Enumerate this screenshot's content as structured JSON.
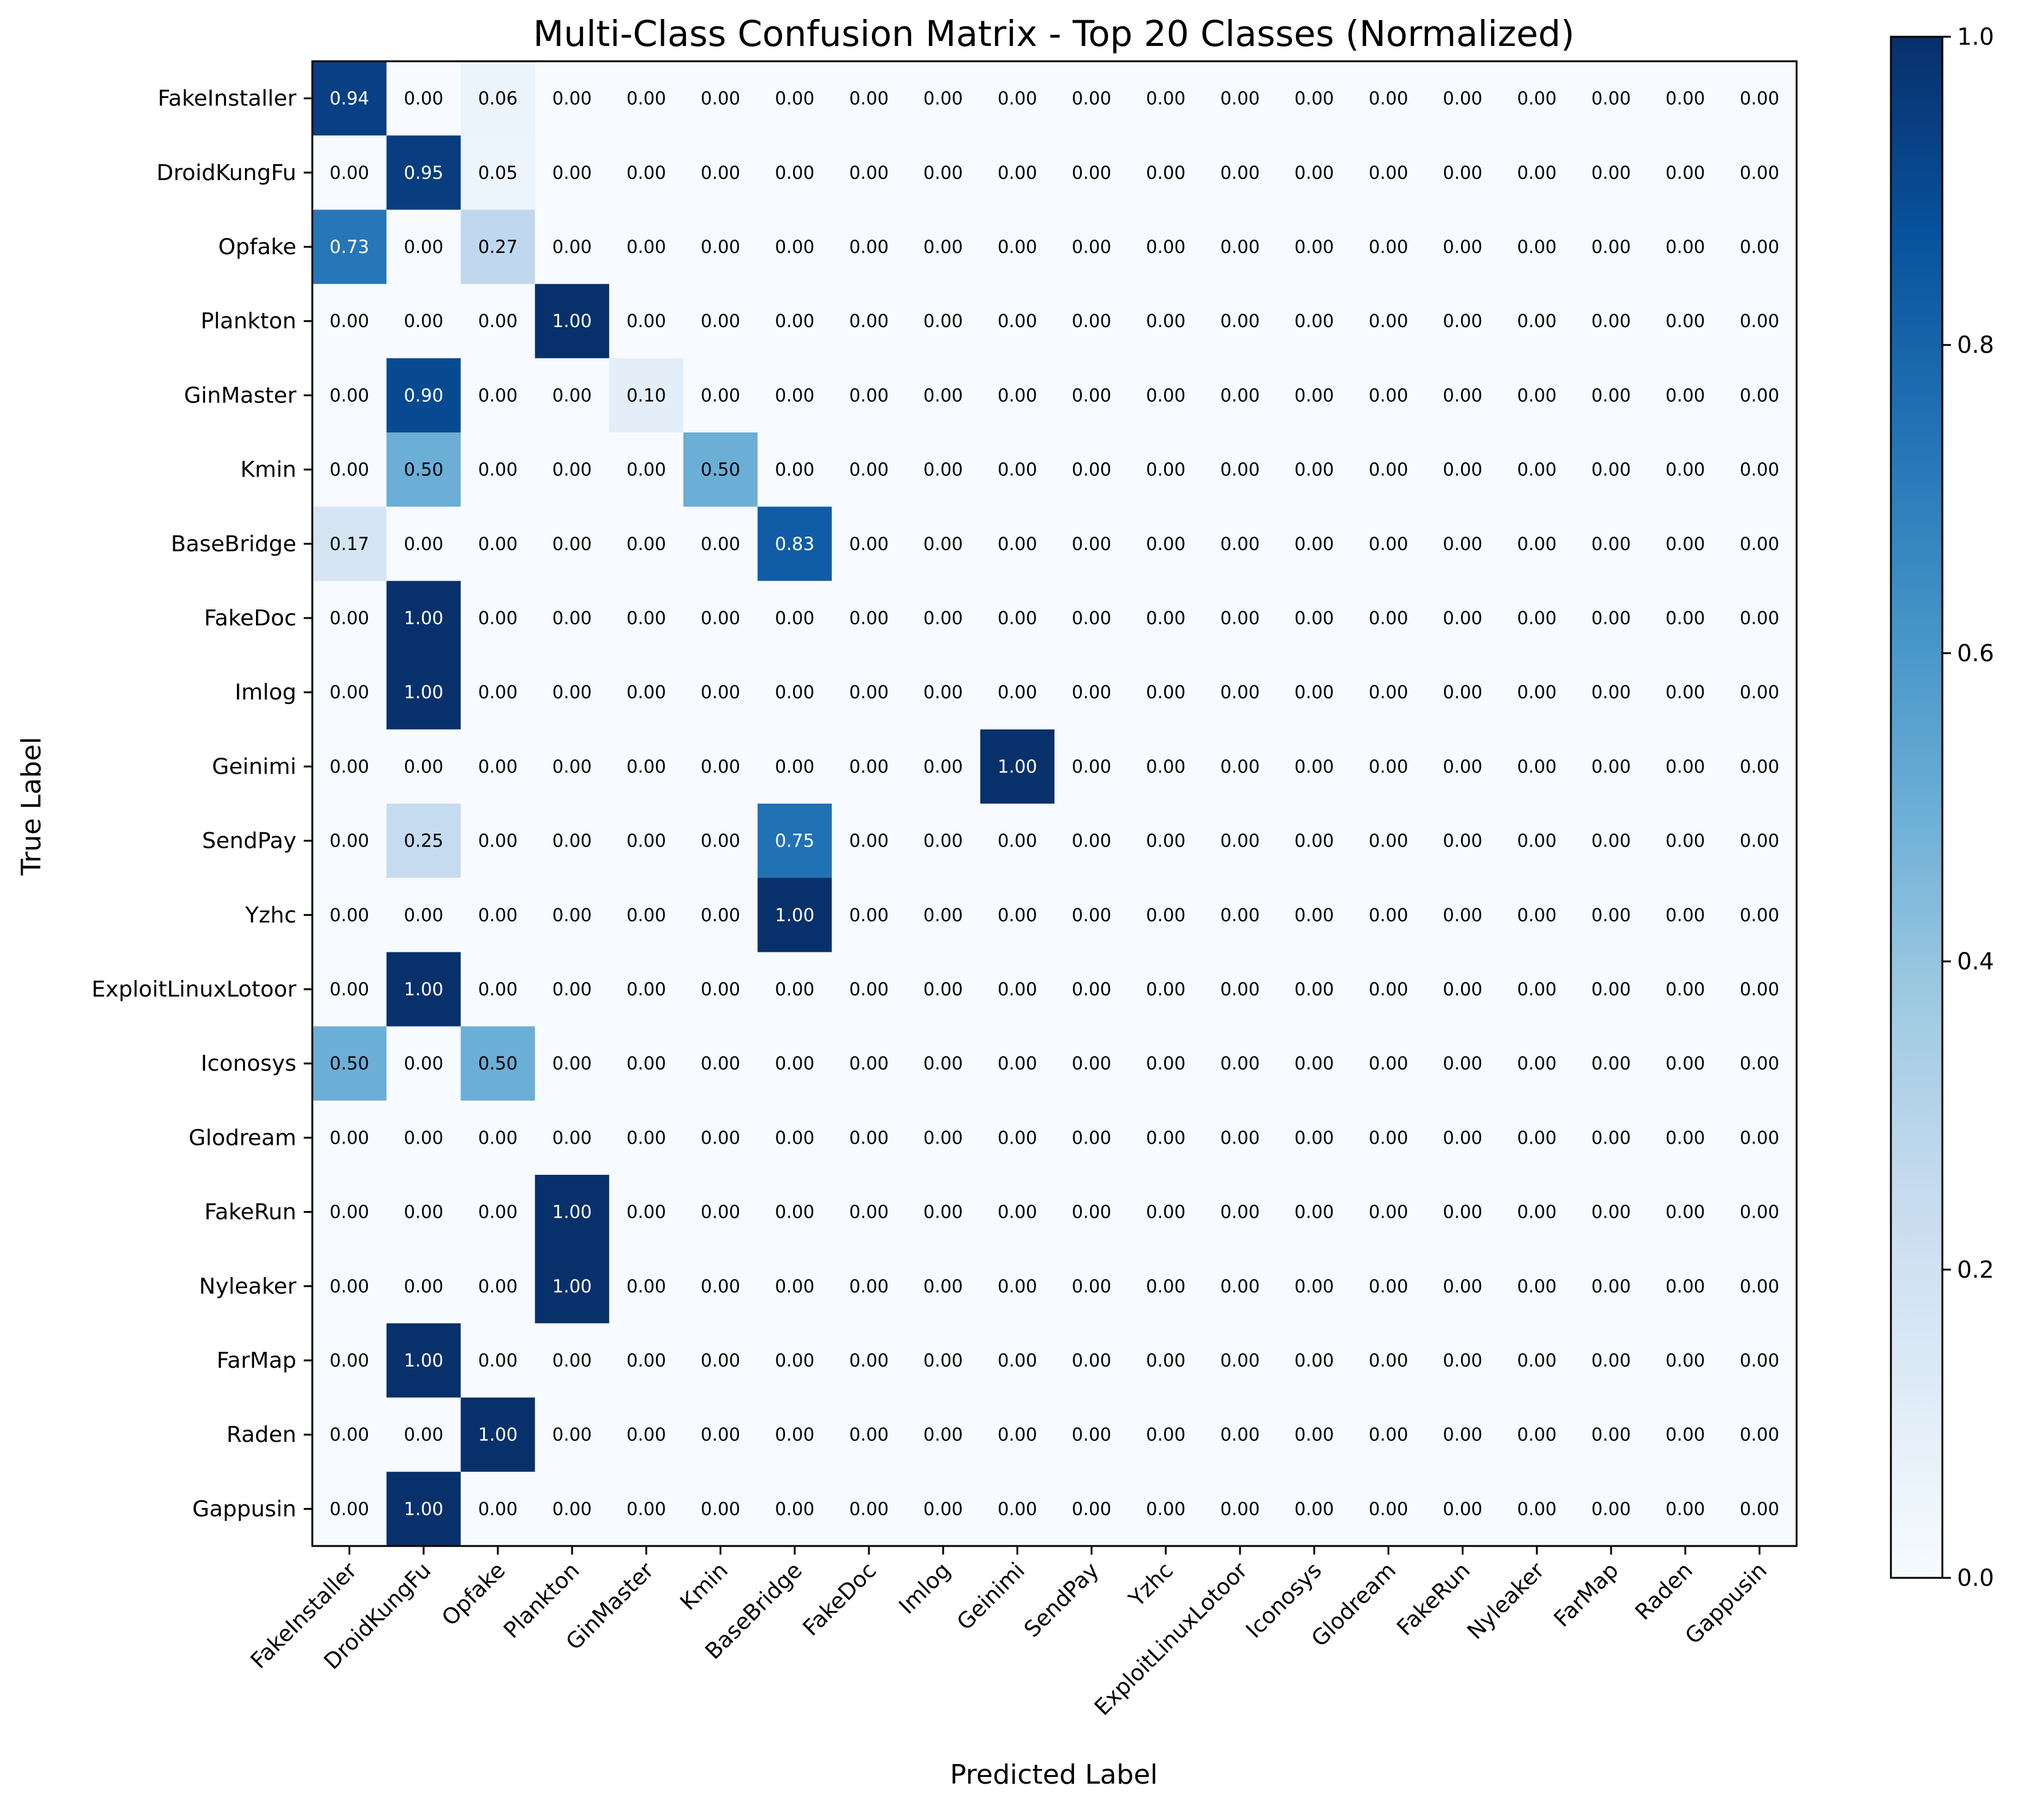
{
  "chart_data": {
    "type": "heatmap",
    "title": "Multi-Class Confusion Matrix - Top 20 Classes (Normalized)",
    "xlabel": "Predicted Label",
    "ylabel": "True Label",
    "classes": [
      "FakeInstaller",
      "DroidKungFu",
      "Opfake",
      "Plankton",
      "GinMaster",
      "Kmin",
      "BaseBridge",
      "FakeDoc",
      "Imlog",
      "Geinimi",
      "SendPay",
      "Yzhc",
      "ExploitLinuxLotoor",
      "Iconosys",
      "Glodream",
      "FakeRun",
      "Nyleaker",
      "FarMap",
      "Raden",
      "Gappusin"
    ],
    "matrix": [
      [
        0.94,
        0,
        0.06,
        0,
        0,
        0,
        0,
        0,
        0,
        0,
        0,
        0,
        0,
        0,
        0,
        0,
        0,
        0,
        0,
        0
      ],
      [
        0,
        0.95,
        0.05,
        0,
        0,
        0,
        0,
        0,
        0,
        0,
        0,
        0,
        0,
        0,
        0,
        0,
        0,
        0,
        0,
        0
      ],
      [
        0.73,
        0,
        0.27,
        0,
        0,
        0,
        0,
        0,
        0,
        0,
        0,
        0,
        0,
        0,
        0,
        0,
        0,
        0,
        0,
        0
      ],
      [
        0,
        0,
        0,
        1,
        0,
        0,
        0,
        0,
        0,
        0,
        0,
        0,
        0,
        0,
        0,
        0,
        0,
        0,
        0,
        0
      ],
      [
        0,
        0.9,
        0,
        0,
        0.1,
        0,
        0,
        0,
        0,
        0,
        0,
        0,
        0,
        0,
        0,
        0,
        0,
        0,
        0,
        0
      ],
      [
        0,
        0.5,
        0,
        0,
        0,
        0.5,
        0,
        0,
        0,
        0,
        0,
        0,
        0,
        0,
        0,
        0,
        0,
        0,
        0,
        0
      ],
      [
        0.17,
        0,
        0,
        0,
        0,
        0,
        0.83,
        0,
        0,
        0,
        0,
        0,
        0,
        0,
        0,
        0,
        0,
        0,
        0,
        0
      ],
      [
        0,
        1,
        0,
        0,
        0,
        0,
        0,
        0,
        0,
        0,
        0,
        0,
        0,
        0,
        0,
        0,
        0,
        0,
        0,
        0
      ],
      [
        0,
        1,
        0,
        0,
        0,
        0,
        0,
        0,
        0,
        0,
        0,
        0,
        0,
        0,
        0,
        0,
        0,
        0,
        0,
        0
      ],
      [
        0,
        0,
        0,
        0,
        0,
        0,
        0,
        0,
        0,
        1,
        0,
        0,
        0,
        0,
        0,
        0,
        0,
        0,
        0,
        0
      ],
      [
        0,
        0.25,
        0,
        0,
        0,
        0,
        0.75,
        0,
        0,
        0,
        0,
        0,
        0,
        0,
        0,
        0,
        0,
        0,
        0,
        0
      ],
      [
        0,
        0,
        0,
        0,
        0,
        0,
        1,
        0,
        0,
        0,
        0,
        0,
        0,
        0,
        0,
        0,
        0,
        0,
        0,
        0
      ],
      [
        0,
        1,
        0,
        0,
        0,
        0,
        0,
        0,
        0,
        0,
        0,
        0,
        0,
        0,
        0,
        0,
        0,
        0,
        0,
        0
      ],
      [
        0.5,
        0,
        0.5,
        0,
        0,
        0,
        0,
        0,
        0,
        0,
        0,
        0,
        0,
        0,
        0,
        0,
        0,
        0,
        0,
        0
      ],
      [
        0,
        0,
        0,
        0,
        0,
        0,
        0,
        0,
        0,
        0,
        0,
        0,
        0,
        0,
        0,
        0,
        0,
        0,
        0,
        0
      ],
      [
        0,
        0,
        0,
        1,
        0,
        0,
        0,
        0,
        0,
        0,
        0,
        0,
        0,
        0,
        0,
        0,
        0,
        0,
        0,
        0
      ],
      [
        0,
        0,
        0,
        1,
        0,
        0,
        0,
        0,
        0,
        0,
        0,
        0,
        0,
        0,
        0,
        0,
        0,
        0,
        0,
        0
      ],
      [
        0,
        1,
        0,
        0,
        0,
        0,
        0,
        0,
        0,
        0,
        0,
        0,
        0,
        0,
        0,
        0,
        0,
        0,
        0,
        0
      ],
      [
        0,
        0,
        1,
        0,
        0,
        0,
        0,
        0,
        0,
        0,
        0,
        0,
        0,
        0,
        0,
        0,
        0,
        0,
        0,
        0
      ],
      [
        0,
        1,
        0,
        0,
        0,
        0,
        0,
        0,
        0,
        0,
        0,
        0,
        0,
        0,
        0,
        0,
        0,
        0,
        0,
        0
      ]
    ],
    "value_format": "2 decimals",
    "colorbar": {
      "colormap": "Blues",
      "range": [
        0,
        1
      ],
      "ticks": [
        "0.0",
        "0.2",
        "0.4",
        "0.6",
        "0.8",
        "1.0"
      ]
    }
  }
}
